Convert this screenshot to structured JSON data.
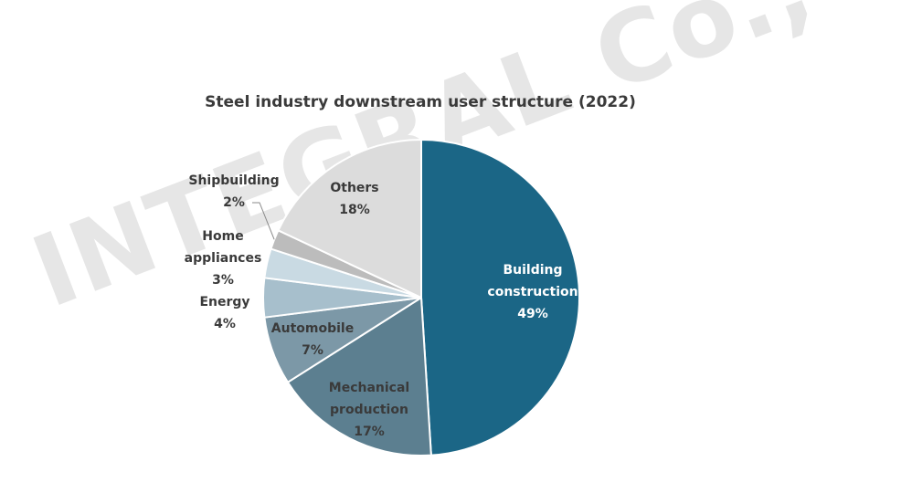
{
  "watermark": "INTEGRAL Co., Ltd",
  "chart_data": {
    "type": "pie",
    "title": "Steel industry downstream user structure (2022)",
    "slices": [
      {
        "label": "Building construction",
        "value": 49,
        "pct_label": "49%",
        "color": "#1b6686"
      },
      {
        "label": "Mechanical production",
        "value": 17,
        "pct_label": "17%",
        "color": "#5c7f90"
      },
      {
        "label": "Automobile",
        "value": 7,
        "pct_label": "7%",
        "color": "#7c98a7"
      },
      {
        "label": "Energy",
        "value": 4,
        "pct_label": "4%",
        "color": "#a7bfcc"
      },
      {
        "label": "Home appliances",
        "value": 3,
        "pct_label": "3%",
        "color": "#c9dae3"
      },
      {
        "label": "Shipbuilding",
        "value": 2,
        "pct_label": "2%",
        "color": "#bcbcbc"
      },
      {
        "label": "Others",
        "value": 18,
        "pct_label": "18%",
        "color": "#dcdcdc"
      }
    ]
  }
}
